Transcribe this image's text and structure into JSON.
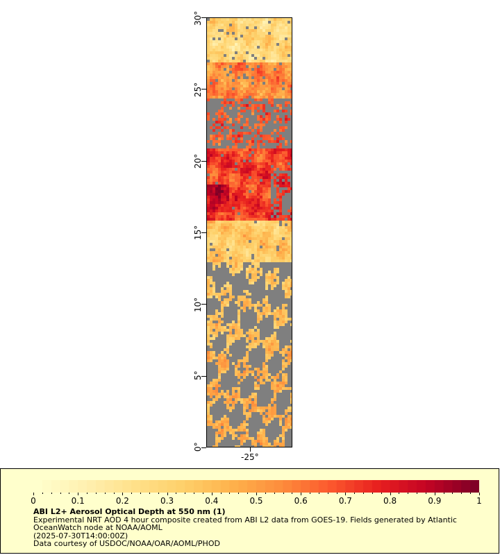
{
  "map": {
    "y_axis_labels": [
      "0°",
      "5°",
      "10°",
      "15°",
      "20°",
      "25°",
      "30°"
    ],
    "x_axis_labels": [
      "-25°"
    ],
    "lat_range": [
      0,
      30
    ],
    "no_data_color": "#7f7f7f"
  },
  "legend": {
    "title": "ABI L2+ Aerosol Optical Depth at 550 nm (1)",
    "line1": "Experimental NRT AOD 4 hour composite created from ABI L2 data from GOES-19. Fields generated by Atlantic",
    "line2": "OceanWatch node at NOAA/AOML",
    "line3": "(2025-07-30T14:00:00Z)",
    "line4": "Data courtesy of USDOC/NOAA/OAR/AOML/PHOD",
    "scale_labels": [
      "0",
      "0.1",
      "0.2",
      "0.3",
      "0.4",
      "0.5",
      "0.6",
      "0.7",
      "0.8",
      "0.9",
      "1"
    ],
    "scale_range": [
      0,
      1
    ],
    "colors": [
      "#ffffcc",
      "#fff0b0",
      "#ffe08a",
      "#fed06a",
      "#feb24c",
      "#fd8d3c",
      "#fc5a2e",
      "#e8201f",
      "#c40424",
      "#800026"
    ]
  }
}
